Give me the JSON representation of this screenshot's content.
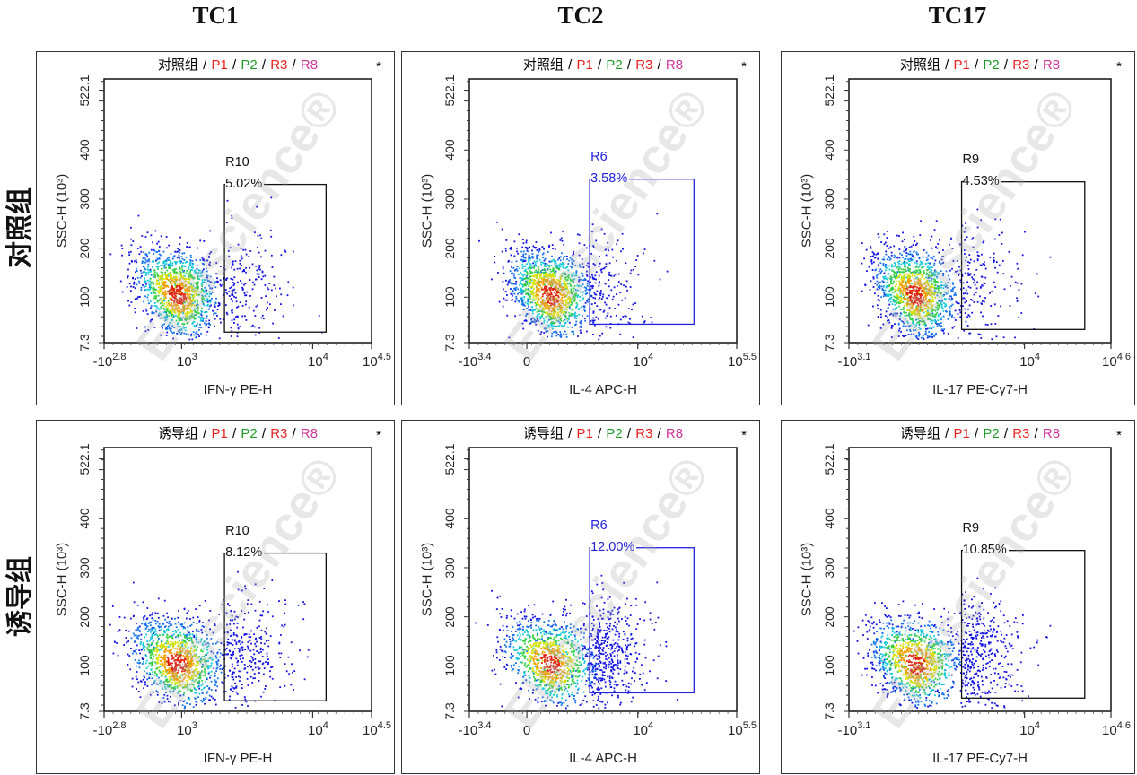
{
  "column_titles": [
    "TC1",
    "TC2",
    "TC17"
  ],
  "row_labels": [
    "对照组",
    "诱导组"
  ],
  "watermark": "Elabscience®",
  "colors": {
    "P1": "#e8201f",
    "P2": "#1f9a2a",
    "R3": "#e8201f",
    "R8": "#d1359b",
    "gate_blue": "#2222dd",
    "gate_black": "#111111"
  },
  "chart_data": [
    {
      "type": "scatter",
      "title_group": "对照组",
      "populations": [
        "P1",
        "P2",
        "R3",
        "R8"
      ],
      "star": "*",
      "ylabel": "SSC-H (10³)",
      "xlabel": "IFN-γ PE-H",
      "ylim": [
        7.3,
        545
      ],
      "yticks": [
        "7.3",
        "100",
        "200",
        "300",
        "400",
        "522.1"
      ],
      "xticks": [
        {
          "base": "-10",
          "exp": "2.8"
        },
        {
          "base": "10",
          "exp": "3"
        },
        {
          "base": "10",
          "exp": "4"
        },
        {
          "base": "10",
          "exp": "4.5"
        }
      ],
      "gate": {
        "name": "R10",
        "percent": "5.02%",
        "color": "black"
      }
    },
    {
      "type": "scatter",
      "title_group": "对照组",
      "populations": [
        "P1",
        "P2",
        "R3",
        "R8"
      ],
      "star": "*",
      "ylabel": "SSC-H (10³)",
      "xlabel": "IL-4 APC-H",
      "ylim": [
        7.3,
        545
      ],
      "yticks": [
        "7.3",
        "100",
        "200",
        "300",
        "400",
        "522.1"
      ],
      "xticks": [
        {
          "base": "-10",
          "exp": "3.4"
        },
        {
          "base": "0",
          "exp": ""
        },
        {
          "base": "10",
          "exp": "4"
        },
        {
          "base": "10",
          "exp": "5.5"
        }
      ],
      "gate": {
        "name": "R6",
        "percent": "3.58%",
        "color": "blue"
      }
    },
    {
      "type": "scatter",
      "title_group": "对照组",
      "populations": [
        "P1",
        "P2",
        "R3",
        "R8"
      ],
      "star": "*",
      "ylabel": "SSC-H (10³)",
      "xlabel": "IL-17 PE-Cy7-H",
      "ylim": [
        7.3,
        545
      ],
      "yticks": [
        "7.3",
        "100",
        "200",
        "300",
        "400",
        "522.1"
      ],
      "xticks": [
        {
          "base": "-10",
          "exp": "3.1"
        },
        {
          "base": "10",
          "exp": "4"
        },
        {
          "base": "10",
          "exp": "4.6"
        }
      ],
      "gate": {
        "name": "R9",
        "percent": "4.53%",
        "color": "black"
      }
    },
    {
      "type": "scatter",
      "title_group": "诱导组",
      "populations": [
        "P1",
        "P2",
        "R3",
        "R8"
      ],
      "star": "*",
      "ylabel": "SSC-H (10³)",
      "xlabel": "IFN-γ PE-H",
      "ylim": [
        7.3,
        545
      ],
      "yticks": [
        "7.3",
        "100",
        "200",
        "300",
        "400",
        "522.1"
      ],
      "xticks": [
        {
          "base": "-10",
          "exp": "2.8"
        },
        {
          "base": "10",
          "exp": "3"
        },
        {
          "base": "10",
          "exp": "4"
        },
        {
          "base": "10",
          "exp": "4.5"
        }
      ],
      "gate": {
        "name": "R10",
        "percent": "8.12%",
        "color": "black"
      }
    },
    {
      "type": "scatter",
      "title_group": "诱导组",
      "populations": [
        "P1",
        "P2",
        "R3",
        "R8"
      ],
      "star": "*",
      "ylabel": "SSC-H (10³)",
      "xlabel": "IL-4 APC-H",
      "ylim": [
        7.3,
        545
      ],
      "yticks": [
        "7.3",
        "100",
        "200",
        "300",
        "400",
        "522.1"
      ],
      "xticks": [
        {
          "base": "-10",
          "exp": "3.4"
        },
        {
          "base": "0",
          "exp": ""
        },
        {
          "base": "10",
          "exp": "4"
        },
        {
          "base": "10",
          "exp": "5.5"
        }
      ],
      "gate": {
        "name": "R6",
        "percent": "12.00%",
        "color": "blue"
      }
    },
    {
      "type": "scatter",
      "title_group": "诱导组",
      "populations": [
        "P1",
        "P2",
        "R3",
        "R8"
      ],
      "star": "*",
      "ylabel": "SSC-H (10³)",
      "xlabel": "IL-17 PE-Cy7-H",
      "ylim": [
        7.3,
        545
      ],
      "yticks": [
        "7.3",
        "100",
        "200",
        "300",
        "400",
        "522.1"
      ],
      "xticks": [
        {
          "base": "-10",
          "exp": "3.1"
        },
        {
          "base": "10",
          "exp": "4"
        },
        {
          "base": "10",
          "exp": "4.6"
        }
      ],
      "gate": {
        "name": "R9",
        "percent": "10.85%",
        "color": "black"
      }
    }
  ]
}
